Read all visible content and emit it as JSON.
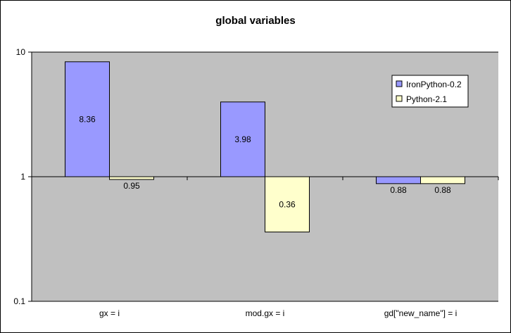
{
  "chart_data": {
    "type": "bar",
    "title": "global variables",
    "categories": [
      "gx = i",
      "mod.gx = i",
      "gd[\"new_name\"] = i"
    ],
    "series": [
      {
        "name": "IronPython-0.2",
        "values": [
          8.36,
          3.98,
          0.88
        ],
        "color": "#9999ff"
      },
      {
        "name": "Python-2.1",
        "values": [
          0.95,
          0.36,
          0.88
        ],
        "color": "#ffffcc"
      }
    ],
    "data_labels": [
      [
        "8.36",
        "3.98",
        "0.88"
      ],
      [
        "0.95",
        "0.36",
        "0.88"
      ]
    ],
    "yscale": "log",
    "ylim": [
      0.1,
      10
    ],
    "yticks": [
      10,
      1,
      0.1
    ],
    "ytick_labels": [
      "10",
      "1",
      "0.1"
    ],
    "baseline": 1,
    "grid": true,
    "legend_position": "top-right",
    "plot_background": "#c0c0c0"
  }
}
